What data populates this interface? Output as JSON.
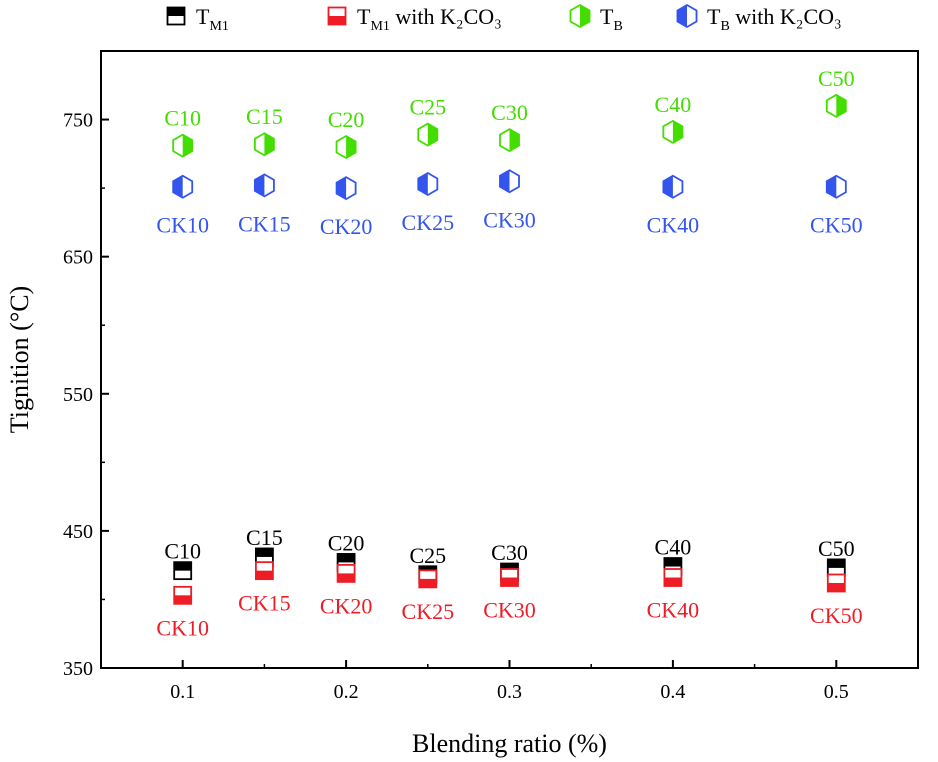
{
  "chart_data": {
    "type": "scatter",
    "xlabel": "Blending ratio (%)",
    "ylabel": "Tignition (°C)",
    "xlim": [
      0.05,
      0.55
    ],
    "ylim": [
      350,
      800
    ],
    "xticks": [
      0.1,
      0.2,
      0.3,
      0.4,
      0.5
    ],
    "xtick_labels": [
      "0.1",
      "0.2",
      "0.3",
      "0.4",
      "0.5"
    ],
    "yticks": [
      350,
      450,
      550,
      650,
      750
    ],
    "ytick_labels": [
      "350",
      "450",
      "550",
      "650",
      "750"
    ],
    "legend_position": "top",
    "series": [
      {
        "key": "tm1",
        "name": "T_M1",
        "legend_main": "T",
        "legend_sub": "M1",
        "legend_rest": "",
        "marker": "square-half-top",
        "color": "#000000",
        "x": [
          0.1,
          0.15,
          0.2,
          0.25,
          0.3,
          0.4,
          0.5
        ],
        "values": [
          421,
          431,
          427,
          418,
          420,
          424,
          423
        ],
        "labels": [
          "C10",
          "C15",
          "C20",
          "C25",
          "C30",
          "C40",
          "C50"
        ]
      },
      {
        "key": "tm1k",
        "name": "T_M1 with K2CO3",
        "legend_main": "T",
        "legend_sub": "M1",
        "legend_rest": " with K₂CO₃",
        "marker": "square-half-bottom",
        "color": "#ee1c25",
        "x": [
          0.1,
          0.15,
          0.2,
          0.25,
          0.3,
          0.4,
          0.5
        ],
        "values": [
          403,
          421,
          419,
          415,
          416,
          416,
          412
        ],
        "labels": [
          "CK10",
          "CK15",
          "CK20",
          "CK25",
          "CK30",
          "CK40",
          "CK50"
        ]
      },
      {
        "key": "tb",
        "name": "T_B",
        "legend_main": "T",
        "legend_sub": "B",
        "legend_rest": "",
        "marker": "hexagon-half-right",
        "color": "#44dd00",
        "x": [
          0.1,
          0.15,
          0.2,
          0.25,
          0.3,
          0.4,
          0.5
        ],
        "values": [
          731,
          732,
          730,
          739,
          735,
          741,
          760
        ],
        "labels": [
          "C10",
          "C15",
          "C20",
          "C25",
          "C30",
          "C40",
          "C50"
        ]
      },
      {
        "key": "tbk",
        "name": "T_B with K2CO3",
        "legend_main": "T",
        "legend_sub": "B",
        "legend_rest": " with K₂CO₃",
        "marker": "hexagon-half-left",
        "color": "#3355ee",
        "x": [
          0.1,
          0.15,
          0.2,
          0.25,
          0.3,
          0.4,
          0.5
        ],
        "values": [
          701,
          702,
          700,
          703,
          705,
          701,
          701
        ],
        "labels": [
          "CK10",
          "CK15",
          "CK20",
          "CK25",
          "CK30",
          "CK40",
          "CK50"
        ]
      }
    ]
  }
}
